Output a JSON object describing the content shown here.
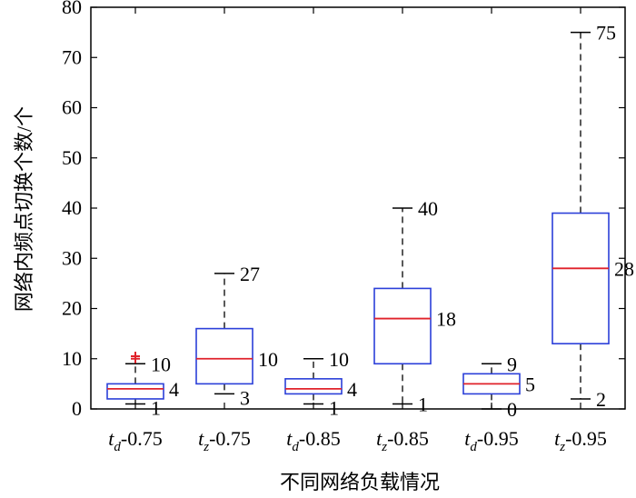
{
  "chart_data": {
    "type": "box",
    "xlabel": "不同网络负载情况",
    "ylabel": "网络内频点切换个数/个",
    "ylim": [
      0,
      80
    ],
    "yticks": [
      0,
      10,
      20,
      30,
      40,
      50,
      60,
      70,
      80
    ],
    "grid": false,
    "categories": [
      {
        "base": "t",
        "sub": "d",
        "suffix": "-0.75"
      },
      {
        "base": "t",
        "sub": "z",
        "suffix": "-0.75"
      },
      {
        "base": "t",
        "sub": "d",
        "suffix": "-0.85"
      },
      {
        "base": "t",
        "sub": "z",
        "suffix": "-0.85"
      },
      {
        "base": "t",
        "sub": "d",
        "suffix": "-0.95"
      },
      {
        "base": "t",
        "sub": "z",
        "suffix": "-0.95"
      }
    ],
    "boxes": [
      {
        "whisker_low": 1,
        "q1": 2,
        "median": 4,
        "q3": 5,
        "whisker_high": 9,
        "outliers": [
          10,
          10.5
        ],
        "labels": {
          "high": "10",
          "median": "4",
          "low": "1"
        }
      },
      {
        "whisker_low": 3,
        "q1": 5,
        "median": 10,
        "q3": 16,
        "whisker_high": 27,
        "outliers": [],
        "labels": {
          "high": "27",
          "median": "10",
          "low": "3"
        }
      },
      {
        "whisker_low": 1,
        "q1": 3,
        "median": 4,
        "q3": 6,
        "whisker_high": 10,
        "outliers": [],
        "labels": {
          "high": "10",
          "median": "4",
          "low": "1"
        }
      },
      {
        "whisker_low": 1,
        "q1": 9,
        "median": 18,
        "q3": 24,
        "whisker_high": 40,
        "outliers": [],
        "labels": {
          "high": "40",
          "median": "18",
          "low": "1"
        }
      },
      {
        "whisker_low": 0,
        "q1": 3,
        "median": 5,
        "q3": 7,
        "whisker_high": 9,
        "outliers": [],
        "labels": {
          "high": "9",
          "median": "5",
          "low": "0"
        }
      },
      {
        "whisker_low": 2,
        "q1": 13,
        "median": 28,
        "q3": 39,
        "whisker_high": 75,
        "outliers": [],
        "labels": {
          "high": "75",
          "median": "28",
          "low": "2"
        }
      }
    ],
    "colors": {
      "box": "#2b3fd9",
      "median": "#e0222a",
      "outlier": "#e0222a",
      "whisker": "#000000",
      "axis": "#000000"
    }
  }
}
